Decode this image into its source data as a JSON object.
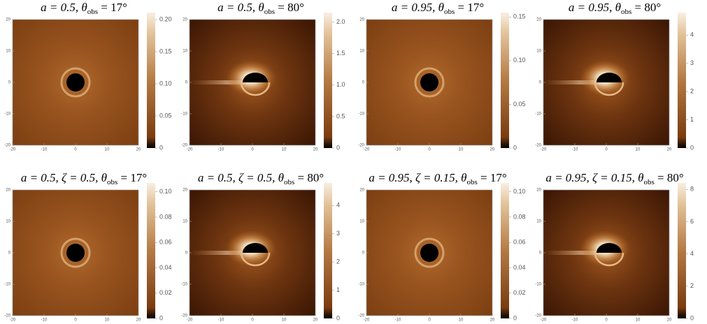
{
  "axis_ticks": [
    -20,
    -10,
    0,
    10,
    20
  ],
  "panels": [
    {
      "title": {
        "pre": "a = 0.5, ",
        "theta": "θ",
        "sub": "obs",
        "post": " = 17°"
      },
      "colorbar": {
        "range": [
          0,
          0.211
        ],
        "ticks": [
          {
            "value": 0,
            "label": "0"
          },
          {
            "value": 0.05,
            "label": "0.05"
          },
          {
            "value": 0.1,
            "label": "0.10"
          },
          {
            "value": 0.15,
            "label": "0.15"
          },
          {
            "value": 0.2,
            "label": "0.20"
          }
        ]
      }
    },
    {
      "title": {
        "pre": "a = 0.5, ",
        "theta": "θ",
        "sub": "obs",
        "post": " = 80°"
      },
      "colorbar": {
        "range": [
          0,
          2.15
        ],
        "ticks": [
          {
            "value": 0,
            "label": "0"
          },
          {
            "value": 0.5,
            "label": "0.5"
          },
          {
            "value": 1,
            "label": "1.0"
          },
          {
            "value": 1.5,
            "label": "1.5"
          },
          {
            "value": 2,
            "label": "2.0"
          }
        ]
      }
    },
    {
      "title": {
        "pre": "a = 0.95, ",
        "theta": "θ",
        "sub": "obs",
        "post": " = 17°"
      },
      "colorbar": {
        "range": [
          0,
          0.155
        ],
        "ticks": [
          {
            "value": 0,
            "label": "0"
          },
          {
            "value": 0.05,
            "label": "0.05"
          },
          {
            "value": 0.1,
            "label": "0.10"
          },
          {
            "value": 0.15,
            "label": "0.15"
          }
        ]
      }
    },
    {
      "title": {
        "pre": "a = 0.95, ",
        "theta": "θ",
        "sub": "obs",
        "post": " = 80°"
      },
      "colorbar": {
        "range": [
          0,
          4.8
        ],
        "ticks": [
          0,
          1,
          2,
          3,
          4
        ]
      }
    },
    {
      "title": {
        "pre": "a = 0.5, ζ = 0.5, ",
        "theta": "θ",
        "sub": "obs",
        "post": " = 17°"
      },
      "colorbar": {
        "range": [
          0,
          0.107
        ],
        "ticks": [
          0,
          {
            "value": 0.02,
            "label": "0.02"
          },
          {
            "value": 0.04,
            "label": "0.04"
          },
          {
            "value": 0.06,
            "label": "0.06"
          },
          {
            "value": 0.08,
            "label": "0.08"
          },
          {
            "value": 0.1,
            "label": "0.10"
          }
        ]
      }
    },
    {
      "title": {
        "pre": "a = 0.5, ζ = 0.5, ",
        "theta": "θ",
        "sub": "obs",
        "post": " = 80°"
      },
      "colorbar": {
        "range": [
          0,
          4.8
        ],
        "ticks": [
          0,
          1,
          2,
          3,
          4
        ]
      }
    },
    {
      "title": {
        "pre": "a = 0.95, ζ = 0.15, ",
        "theta": "θ",
        "sub": "obs",
        "post": " = 17°"
      },
      "colorbar": {
        "range": [
          0,
          0.107
        ],
        "ticks": [
          0,
          {
            "value": 0.02,
            "label": "0.02"
          },
          {
            "value": 0.04,
            "label": "0.04"
          },
          {
            "value": 0.06,
            "label": "0.06"
          },
          {
            "value": 0.08,
            "label": "0.08"
          },
          {
            "value": 0.1,
            "label": "0.10"
          }
        ]
      }
    },
    {
      "title": {
        "pre": "a = 0.95, ζ = 0.15, ",
        "theta": "θ",
        "sub": "obs",
        "post": " = 80°"
      },
      "colorbar": {
        "range": [
          0,
          8.4
        ],
        "ticks": [
          0,
          2,
          4,
          6,
          8
        ]
      }
    }
  ]
}
